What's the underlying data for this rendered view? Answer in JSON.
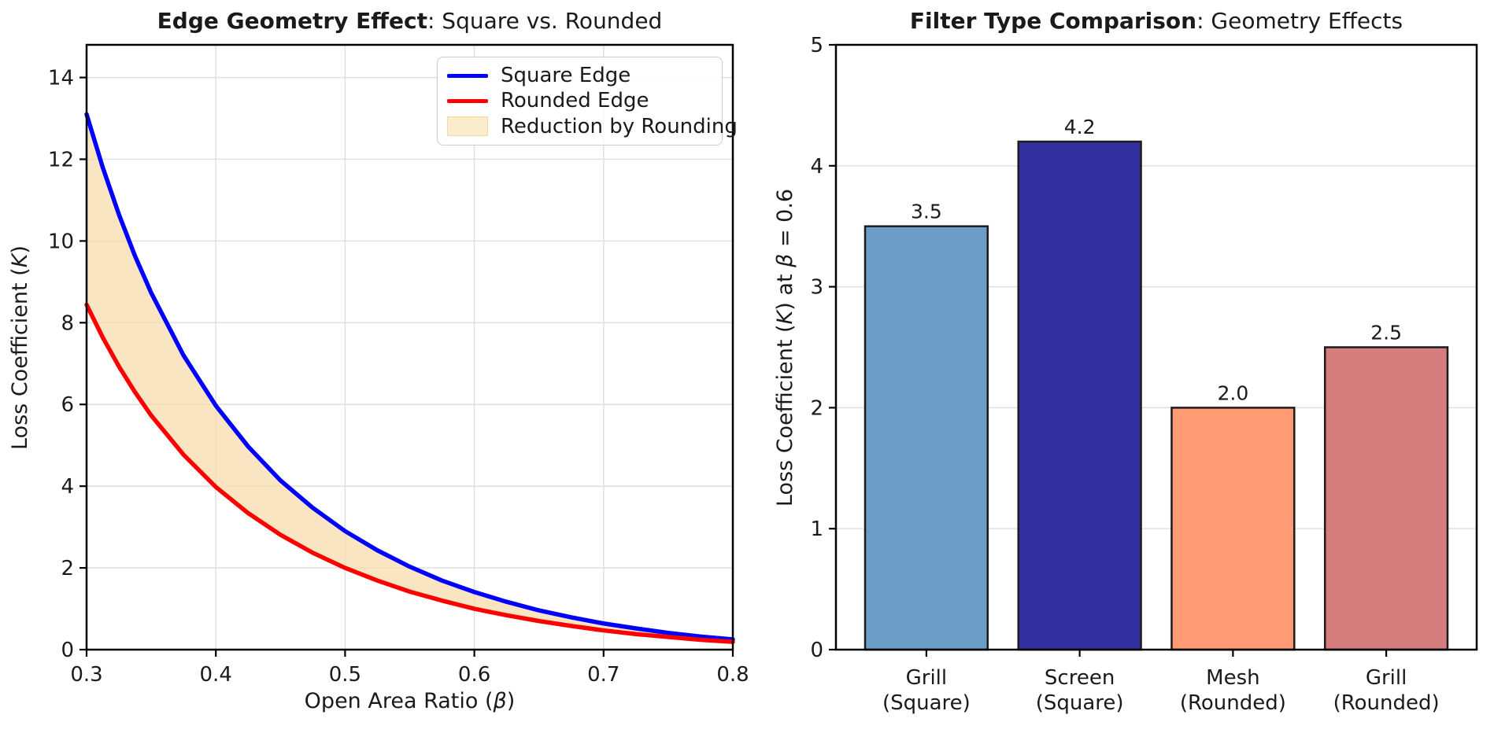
{
  "style": {
    "background": "#ffffff",
    "text_color": "#1a1a1a",
    "grid_color": "#dedede",
    "spine_color": "#000000",
    "legend_border_color": "#cccccc"
  },
  "chart_data": [
    {
      "type": "line",
      "title_bold": "Edge Geometry Effect",
      "title_rest": ": Square vs. Rounded",
      "xlabel_parts": [
        {
          "text": "Open Area Ratio (",
          "italic": false
        },
        {
          "text": "β",
          "italic": true
        },
        {
          "text": ")",
          "italic": false
        }
      ],
      "ylabel_parts": [
        {
          "text": "Loss Coefficient (",
          "italic": false
        },
        {
          "text": "K",
          "italic": true
        },
        {
          "text": ")",
          "italic": false
        }
      ],
      "xlim": [
        0.3,
        0.8
      ],
      "ylim": [
        0,
        14.8
      ],
      "xticks": [
        0.3,
        0.4,
        0.5,
        0.6,
        0.7,
        0.8
      ],
      "xtick_labels": [
        "0.3",
        "0.4",
        "0.5",
        "0.6",
        "0.7",
        "0.8"
      ],
      "yticks": [
        0,
        2,
        4,
        6,
        8,
        10,
        12,
        14
      ],
      "ytick_labels": [
        "0",
        "2",
        "4",
        "6",
        "8",
        "10",
        "12",
        "14"
      ],
      "grid": "both",
      "legend_position": "upper right",
      "x": [
        0.3,
        0.3125,
        0.325,
        0.3375,
        0.35,
        0.375,
        0.4,
        0.425,
        0.45,
        0.475,
        0.5,
        0.525,
        0.55,
        0.575,
        0.6,
        0.625,
        0.65,
        0.675,
        0.7,
        0.725,
        0.75,
        0.775,
        0.8
      ],
      "series": [
        {
          "name": "Square Edge",
          "color": "#0000ff",
          "values": [
            13.1,
            11.8,
            10.65,
            9.63,
            8.73,
            7.2,
            5.97,
            4.97,
            4.14,
            3.47,
            2.9,
            2.43,
            2.03,
            1.69,
            1.41,
            1.17,
            0.96,
            0.79,
            0.64,
            0.52,
            0.41,
            0.32,
            0.25
          ]
        },
        {
          "name": "Rounded Edge",
          "color": "#ff0000",
          "values": [
            8.44,
            7.64,
            6.93,
            6.3,
            5.73,
            4.77,
            3.98,
            3.34,
            2.81,
            2.37,
            2.0,
            1.69,
            1.42,
            1.2,
            1.0,
            0.84,
            0.7,
            0.58,
            0.47,
            0.38,
            0.31,
            0.24,
            0.19
          ]
        }
      ],
      "band": {
        "label": "Reduction by Rounding",
        "fill": "#f7dcae",
        "fill_opacity": 0.75,
        "legend_fill": "#fbeccc",
        "legend_edge": "#f3d9a4"
      }
    },
    {
      "type": "bar",
      "title_bold": "Filter Type Comparison",
      "title_rest": ": Geometry Effects",
      "ylabel_parts": [
        {
          "text": "Loss Coefficient (",
          "italic": false
        },
        {
          "text": "K",
          "italic": true
        },
        {
          "text": ") at ",
          "italic": false
        },
        {
          "text": "β",
          "italic": true
        },
        {
          "text": " = 0.6",
          "italic": false
        }
      ],
      "categories": [
        "Grill\n(Square)",
        "Screen\n(Square)",
        "Mesh\n(Rounded)",
        "Grill\n(Rounded)"
      ],
      "values": [
        3.5,
        4.2,
        2.0,
        2.5
      ],
      "value_labels": [
        "3.5",
        "4.2",
        "2.0",
        "2.5"
      ],
      "bar_colors": [
        "#6c9dc6",
        "#32309e",
        "#ff9a75",
        "#d57d7d"
      ],
      "bar_edge_color": "#1c1c1c",
      "ylim": [
        0,
        5
      ],
      "yticks": [
        0,
        1,
        2,
        3,
        4,
        5
      ],
      "ytick_labels": [
        "0",
        "1",
        "2",
        "3",
        "4",
        "5"
      ],
      "grid": "y"
    }
  ]
}
